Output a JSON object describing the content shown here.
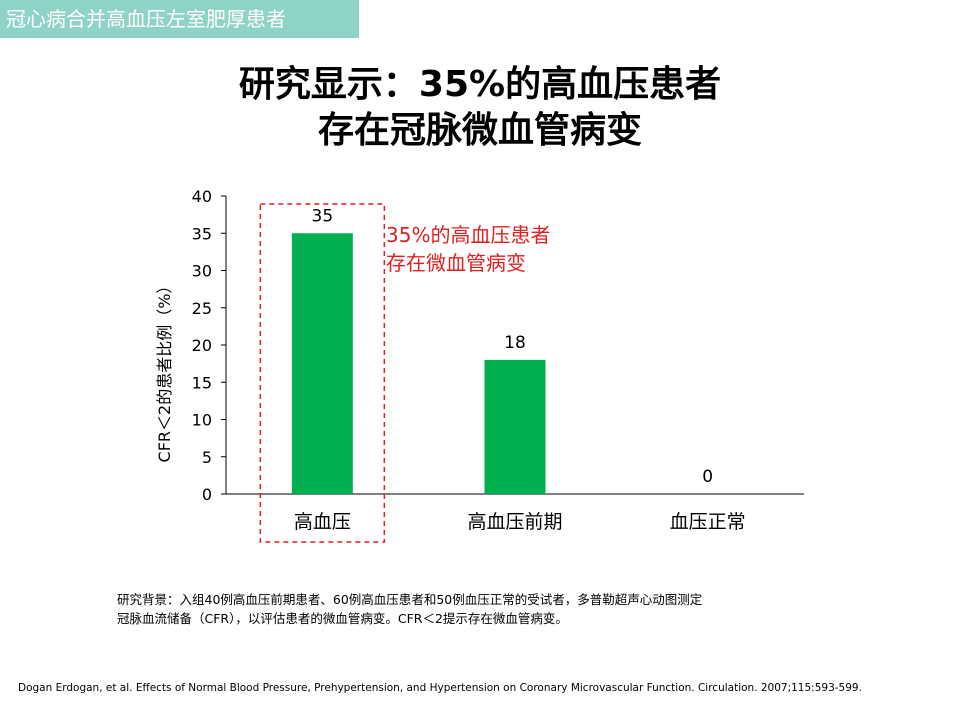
{
  "section_tag": "冠心病合并高血压左室肥厚患者",
  "title": {
    "line1": "研究显示：35%的高血压患者",
    "line2": "存在冠脉微血管病变"
  },
  "chart_data": {
    "type": "bar",
    "categories": [
      "高血压",
      "高血压前期",
      "血压正常"
    ],
    "values": [
      35,
      18,
      0
    ],
    "data_labels": [
      "35",
      "18",
      "0"
    ],
    "ylabel": "CFR＜2的患者比例（%）",
    "ylim": [
      0,
      40
    ],
    "yticks": [
      0,
      5,
      10,
      15,
      20,
      25,
      30,
      35,
      40
    ],
    "bar_color": "#00b050",
    "grid": false,
    "annotation": {
      "line1": "35%的高血压患者",
      "line2": "存在微血管病变",
      "color": "#e02020"
    },
    "highlight_color": "#e02020"
  },
  "background_note": {
    "line1": "研究背景：入组40例高血压前期患者、60例高血压患者和50例血压正常的受试者，多普勒超声心动图测定",
    "line2": "冠脉血流储备（CFR），以评估患者的微血管病变。CFR＜2提示存在微血管病变。"
  },
  "citation": "Dogan Erdogan, et al. Effects of Normal Blood Pressure, Prehypertension, and Hypertension on Coronary Microvascular Function. Circulation. 2007;115:593-599."
}
